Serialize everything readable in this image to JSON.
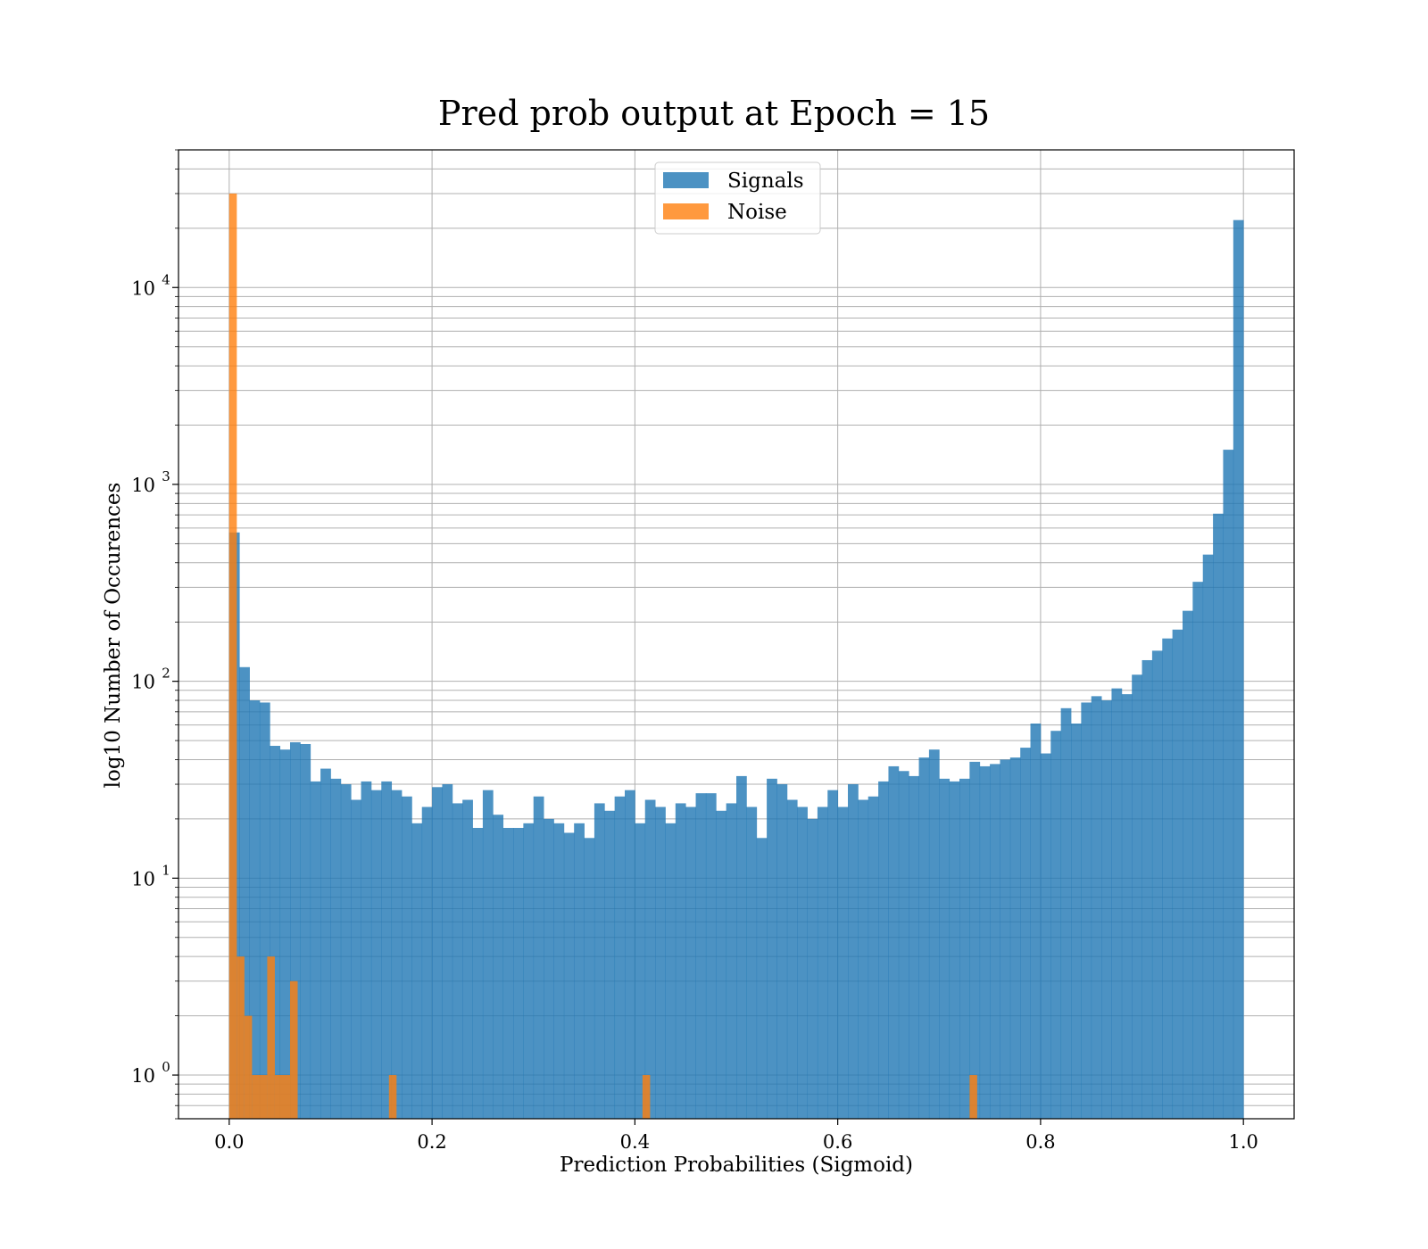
{
  "chart_data": {
    "type": "bar",
    "title": "Pred prob output at Epoch = 15",
    "xlabel": "Prediction Probabilities (Sigmoid)",
    "ylabel": "log10 Number of Occurences",
    "yscale": "log",
    "xlim": [
      -0.05,
      1.05
    ],
    "ylim": [
      0.6,
      50000
    ],
    "xticks": [
      0.0,
      0.2,
      0.4,
      0.6,
      0.8,
      1.0
    ],
    "xtick_labels": [
      "0.0",
      "0.2",
      "0.4",
      "0.6",
      "0.8",
      "1.0"
    ],
    "yticks": [
      1,
      10,
      100,
      1000,
      10000
    ],
    "ytick_labels": [
      {
        "base": "10",
        "exp": "0"
      },
      {
        "base": "10",
        "exp": "1"
      },
      {
        "base": "10",
        "exp": "2"
      },
      {
        "base": "10",
        "exp": "3"
      },
      {
        "base": "10",
        "exp": "4"
      }
    ],
    "grid": true,
    "legend_position": "top-center",
    "series": [
      {
        "name": "Signals",
        "color": "#1f77b4",
        "opacity": 0.8,
        "bin_start": 0.0,
        "bin_width": 0.01,
        "values": [
          570,
          118,
          80,
          78,
          47,
          45,
          49,
          48,
          31,
          36,
          32,
          30,
          25,
          31,
          28,
          31,
          28,
          26,
          19,
          23,
          29,
          30,
          24,
          25,
          18,
          28,
          21,
          18,
          18,
          19,
          26,
          20,
          19,
          17,
          19,
          16,
          24,
          22,
          26,
          28,
          19,
          25,
          23,
          19,
          24,
          23,
          27,
          27,
          22,
          24,
          33,
          23,
          16,
          32,
          30,
          25,
          23,
          20,
          23,
          28,
          23,
          30,
          25,
          26,
          31,
          37,
          35,
          33,
          41,
          45,
          32,
          31,
          32,
          39,
          37,
          38,
          40,
          41,
          46,
          61,
          43,
          56,
          73,
          61,
          78,
          84,
          80,
          92,
          86,
          108,
          128,
          143,
          165,
          183,
          228,
          320,
          440,
          710,
          1500,
          22000
        ]
      },
      {
        "name": "Noise",
        "color": "#ff7f0e",
        "opacity": 0.8,
        "bars": [
          {
            "x0": 0.0,
            "x1": 0.0075,
            "value": 30000
          },
          {
            "x0": 0.0075,
            "x1": 0.015,
            "value": 4
          },
          {
            "x0": 0.015,
            "x1": 0.0225,
            "value": 2
          },
          {
            "x0": 0.0225,
            "x1": 0.0375,
            "value": 1
          },
          {
            "x0": 0.0375,
            "x1": 0.045,
            "value": 4
          },
          {
            "x0": 0.045,
            "x1": 0.06,
            "value": 1
          },
          {
            "x0": 0.06,
            "x1": 0.0675,
            "value": 3
          },
          {
            "x0": 0.1575,
            "x1": 0.165,
            "value": 1
          },
          {
            "x0": 0.4075,
            "x1": 0.415,
            "value": 1
          },
          {
            "x0": 0.73,
            "x1": 0.7375,
            "value": 1
          }
        ]
      }
    ]
  }
}
